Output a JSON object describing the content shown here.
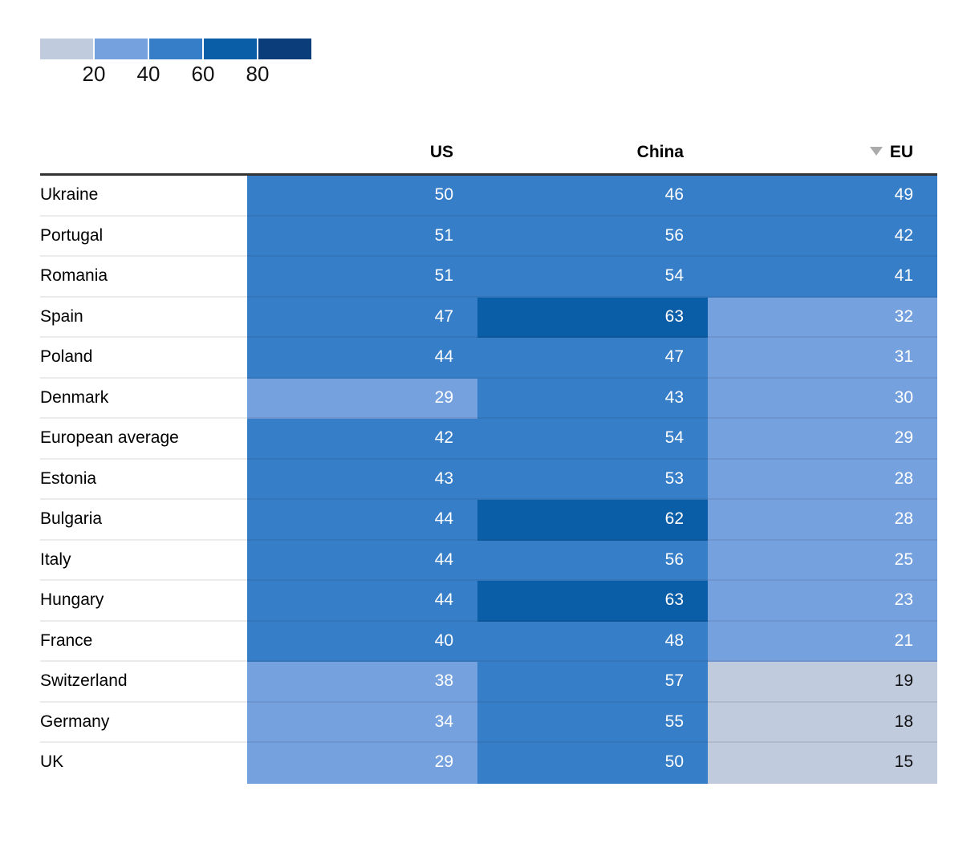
{
  "colors": {
    "scale": [
      "#C0CBDE",
      "#76A1DF",
      "#377EC8",
      "#0A5DA7",
      "#0A3D7A"
    ],
    "text_dark": "#111111",
    "text_light": "#ffffff",
    "header_rule": "#333333",
    "sort_arrow": "#ababab",
    "row_separator": "rgba(30,30,30,0.09)"
  },
  "legend": {
    "tick_labels": [
      "20",
      "40",
      "60",
      "80"
    ],
    "thresholds": [
      20,
      40,
      60,
      80
    ]
  },
  "chart_data": {
    "type": "heatmap",
    "title": "",
    "columns": [
      "US",
      "China",
      "EU"
    ],
    "sort": {
      "column": "EU",
      "direction": "descending"
    },
    "categories": [
      "Ukraine",
      "Portugal",
      "Romania",
      "Spain",
      "Poland",
      "Denmark",
      "European average",
      "Estonia",
      "Bulgaria",
      "Italy",
      "Hungary",
      "France",
      "Switzerland",
      "Germany",
      "UK"
    ],
    "values": [
      [
        50,
        46,
        49
      ],
      [
        51,
        56,
        42
      ],
      [
        51,
        54,
        41
      ],
      [
        47,
        63,
        32
      ],
      [
        44,
        47,
        31
      ],
      [
        29,
        43,
        30
      ],
      [
        42,
        54,
        29
      ],
      [
        43,
        53,
        28
      ],
      [
        44,
        62,
        28
      ],
      [
        44,
        56,
        25
      ],
      [
        44,
        63,
        23
      ],
      [
        40,
        48,
        21
      ],
      [
        38,
        57,
        19
      ],
      [
        34,
        55,
        18
      ],
      [
        29,
        50,
        15
      ]
    ],
    "legend": {
      "tick_labels": [
        "20",
        "40",
        "60",
        "80"
      ],
      "colors": [
        "#C0CBDE",
        "#76A1DF",
        "#377EC8",
        "#0A5DA7",
        "#0A3D7A"
      ],
      "position": "top-left"
    }
  }
}
